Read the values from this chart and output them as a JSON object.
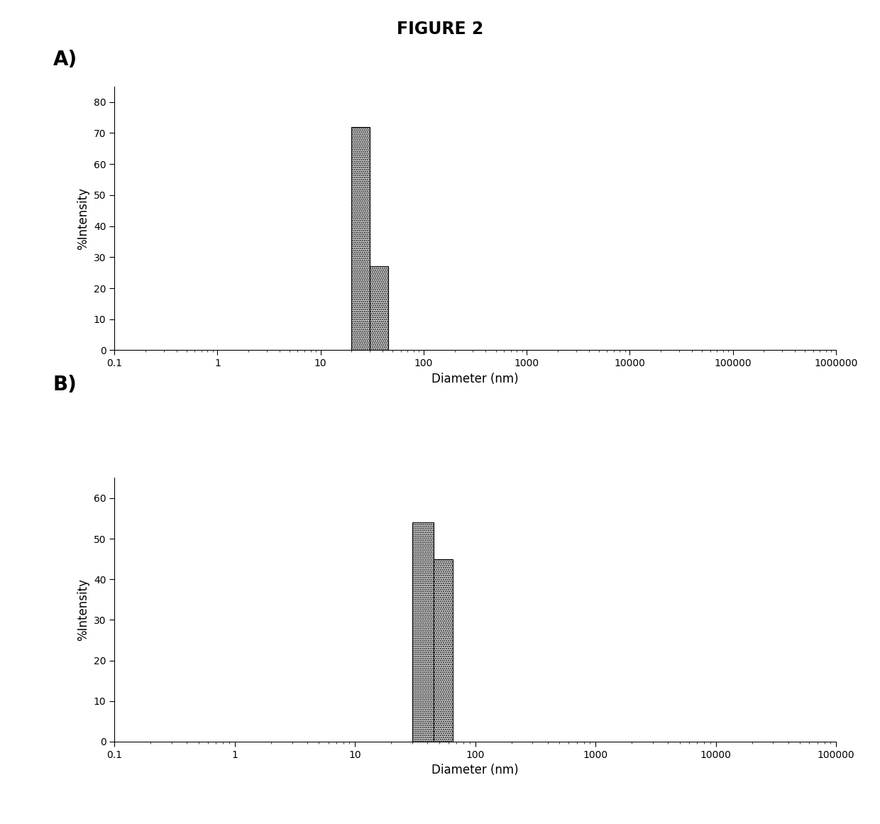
{
  "title": "FIGURE 2",
  "panel_A_label": "A)",
  "panel_B_label": "B)",
  "panel_A": {
    "bars": [
      {
        "x_left": 20,
        "x_right": 30,
        "height": 72
      },
      {
        "x_left": 30,
        "x_right": 45,
        "height": 27
      }
    ],
    "xlim": [
      0.1,
      1000000
    ],
    "xticks": [
      0.1,
      1,
      10,
      100,
      1000,
      10000,
      100000,
      1000000
    ],
    "xticklabels": [
      "0.1",
      "1",
      "10",
      "100",
      "1000",
      "10000",
      "100000",
      "1000000"
    ],
    "ylim": [
      0,
      85
    ],
    "yticks": [
      0,
      10,
      20,
      30,
      40,
      50,
      60,
      70,
      80
    ],
    "ylabel": "%Intensity",
    "xlabel": "Diameter (nm)",
    "bar_color": "#d8d8d8",
    "bar_edgecolor": "#000000"
  },
  "panel_B": {
    "bars": [
      {
        "x_left": 30,
        "x_right": 45,
        "height": 54
      },
      {
        "x_left": 45,
        "x_right": 65,
        "height": 45
      }
    ],
    "xlim": [
      0.1,
      100000
    ],
    "xticks": [
      0.1,
      1,
      10,
      100,
      1000,
      10000,
      100000
    ],
    "xticklabels": [
      "0.1",
      "1",
      "10",
      "100",
      "1000",
      "10000",
      "100000"
    ],
    "ylim": [
      0,
      65
    ],
    "yticks": [
      0,
      10,
      20,
      30,
      40,
      50,
      60
    ],
    "ylabel": "%Intensity",
    "xlabel": "Diameter (nm)",
    "bar_color": "#d8d8d8",
    "bar_edgecolor": "#000000"
  },
  "background_color": "#ffffff",
  "fontsize_title": 17,
  "fontsize_label": 12,
  "fontsize_tick": 10,
  "fontsize_panel": 20
}
